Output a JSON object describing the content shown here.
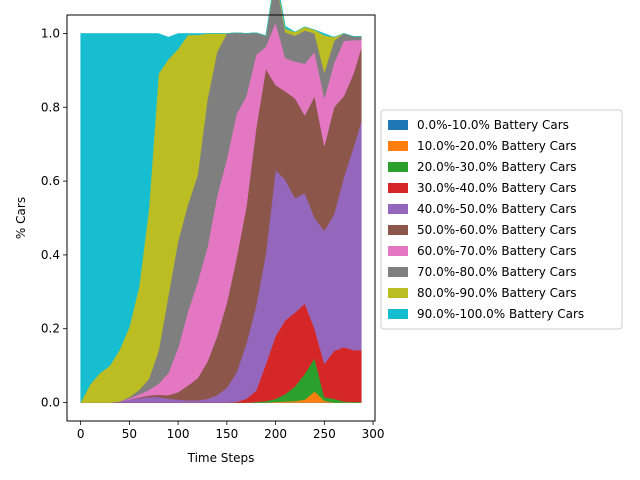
{
  "chart_data": {
    "type": "area",
    "title": "",
    "xlabel": "Time Steps",
    "ylabel": "% Cars",
    "xlim": [
      -14,
      302
    ],
    "ylim": [
      -0.05,
      1.05
    ],
    "xticks": [
      0,
      50,
      100,
      150,
      200,
      250,
      300
    ],
    "xtick_labels": [
      "0",
      "50",
      "100",
      "150",
      "200",
      "250",
      "300"
    ],
    "yticks": [
      0.0,
      0.2,
      0.4,
      0.6,
      0.8,
      1.0
    ],
    "ytick_labels": [
      "0.0",
      "0.2",
      "0.4",
      "0.6",
      "0.8",
      "1.0"
    ],
    "legend_placement": "center-right outside",
    "grid": false,
    "x": [
      0,
      10,
      20,
      30,
      40,
      50,
      60,
      70,
      80,
      90,
      100,
      110,
      120,
      130,
      140,
      150,
      160,
      170,
      180,
      190,
      200,
      210,
      220,
      230,
      240,
      250,
      260,
      270,
      280,
      288
    ],
    "series": [
      {
        "name": "0.0%-10.0% Battery Cars",
        "color": "#1f77b4",
        "values": [
          0,
          0,
          0,
          0,
          0,
          0,
          0,
          0,
          0,
          0,
          0,
          0,
          0,
          0,
          0,
          0,
          0,
          0,
          0,
          0,
          0,
          0,
          0,
          0,
          0,
          0,
          0,
          0,
          0,
          0
        ]
      },
      {
        "name": "10.0%-20.0% Battery Cars",
        "color": "#ff7f0e",
        "values": [
          0,
          0,
          0,
          0,
          0,
          0,
          0,
          0,
          0,
          0,
          0,
          0,
          0,
          0,
          0,
          0,
          0,
          0,
          0,
          0,
          0.002,
          0.003,
          0.004,
          0.008,
          0.03,
          0.005,
          0,
          0,
          0,
          0
        ]
      },
      {
        "name": "20.0%-30.0% Battery Cars",
        "color": "#2ca02c",
        "values": [
          0,
          0,
          0,
          0,
          0,
          0,
          0,
          0,
          0,
          0,
          0,
          0,
          0,
          0,
          0,
          0,
          0,
          0,
          0.002,
          0.004,
          0.008,
          0.02,
          0.04,
          0.07,
          0.09,
          0.01,
          0.01,
          0.003,
          0.002,
          0.002
        ]
      },
      {
        "name": "30.0%-40.0% Battery Cars",
        "color": "#d62728",
        "values": [
          0,
          0,
          0,
          0,
          0,
          0,
          0,
          0,
          0,
          0,
          0,
          0,
          0,
          0,
          0,
          0,
          0.002,
          0.01,
          0.03,
          0.1,
          0.17,
          0.2,
          0.2,
          0.19,
          0.08,
          0.09,
          0.13,
          0.147,
          0.14,
          0.14
        ]
      },
      {
        "name": "40.0%-50.0% Battery Cars",
        "color": "#9467bd",
        "values": [
          0,
          0,
          0,
          0,
          0.003,
          0.008,
          0.012,
          0.015,
          0.015,
          0.01,
          0.008,
          0.006,
          0.006,
          0.01,
          0.02,
          0.04,
          0.08,
          0.15,
          0.23,
          0.3,
          0.45,
          0.38,
          0.31,
          0.3,
          0.3,
          0.36,
          0.37,
          0.46,
          0.55,
          0.62
        ]
      },
      {
        "name": "50.0%-60.0% Battery Cars",
        "color": "#8c564b",
        "values": [
          0,
          0,
          0,
          0,
          0,
          0,
          0.002,
          0.004,
          0.006,
          0.01,
          0.02,
          0.04,
          0.06,
          0.1,
          0.16,
          0.23,
          0.31,
          0.37,
          0.48,
          0.5,
          0.23,
          0.24,
          0.27,
          0.21,
          0.33,
          0.23,
          0.29,
          0.22,
          0.2,
          0.2
        ]
      },
      {
        "name": "60.0%-70.0% Battery Cars",
        "color": "#e377c2",
        "values": [
          0,
          0,
          0,
          0,
          0,
          0.003,
          0.008,
          0.015,
          0.03,
          0.06,
          0.12,
          0.2,
          0.26,
          0.31,
          0.38,
          0.39,
          0.39,
          0.3,
          0.2,
          0.06,
          0.17,
          0.09,
          0.1,
          0.14,
          0.12,
          0.13,
          0.12,
          0.15,
          0.09,
          0.02
        ]
      },
      {
        "name": "70.0%-80.0% Battery Cars",
        "color": "#7f7f7f",
        "values": [
          0,
          0,
          0,
          0,
          0,
          0.004,
          0.012,
          0.03,
          0.09,
          0.21,
          0.29,
          0.29,
          0.29,
          0.4,
          0.39,
          0.34,
          0.22,
          0.17,
          0.06,
          0.03,
          0.12,
          0.07,
          0.07,
          0.09,
          0.05,
          0.07,
          0.06,
          0.02,
          0.01,
          0.01
        ]
      },
      {
        "name": "80.0%-90.0% Battery Cars",
        "color": "#bcbd22",
        "values": [
          0,
          0.05,
          0.08,
          0.1,
          0.14,
          0.19,
          0.28,
          0.46,
          0.75,
          0.64,
          0.52,
          0.46,
          0.38,
          0.18,
          0.05,
          0,
          0,
          0,
          0,
          0,
          0.01,
          0.01,
          0.01,
          0.01,
          0.01,
          0.1,
          0.01,
          0,
          0,
          0
        ]
      },
      {
        "name": "90.0%-100.0% Battery Cars",
        "color": "#17becf",
        "values": [
          1,
          0.95,
          0.92,
          0.9,
          0.857,
          0.795,
          0.686,
          0.476,
          0.109,
          0.06,
          0.042,
          0.004,
          0.004,
          0,
          0,
          0,
          0,
          0,
          0,
          0,
          0.008,
          0.007,
          0,
          0,
          0,
          0.005,
          0,
          0,
          0,
          0
        ]
      }
    ]
  }
}
